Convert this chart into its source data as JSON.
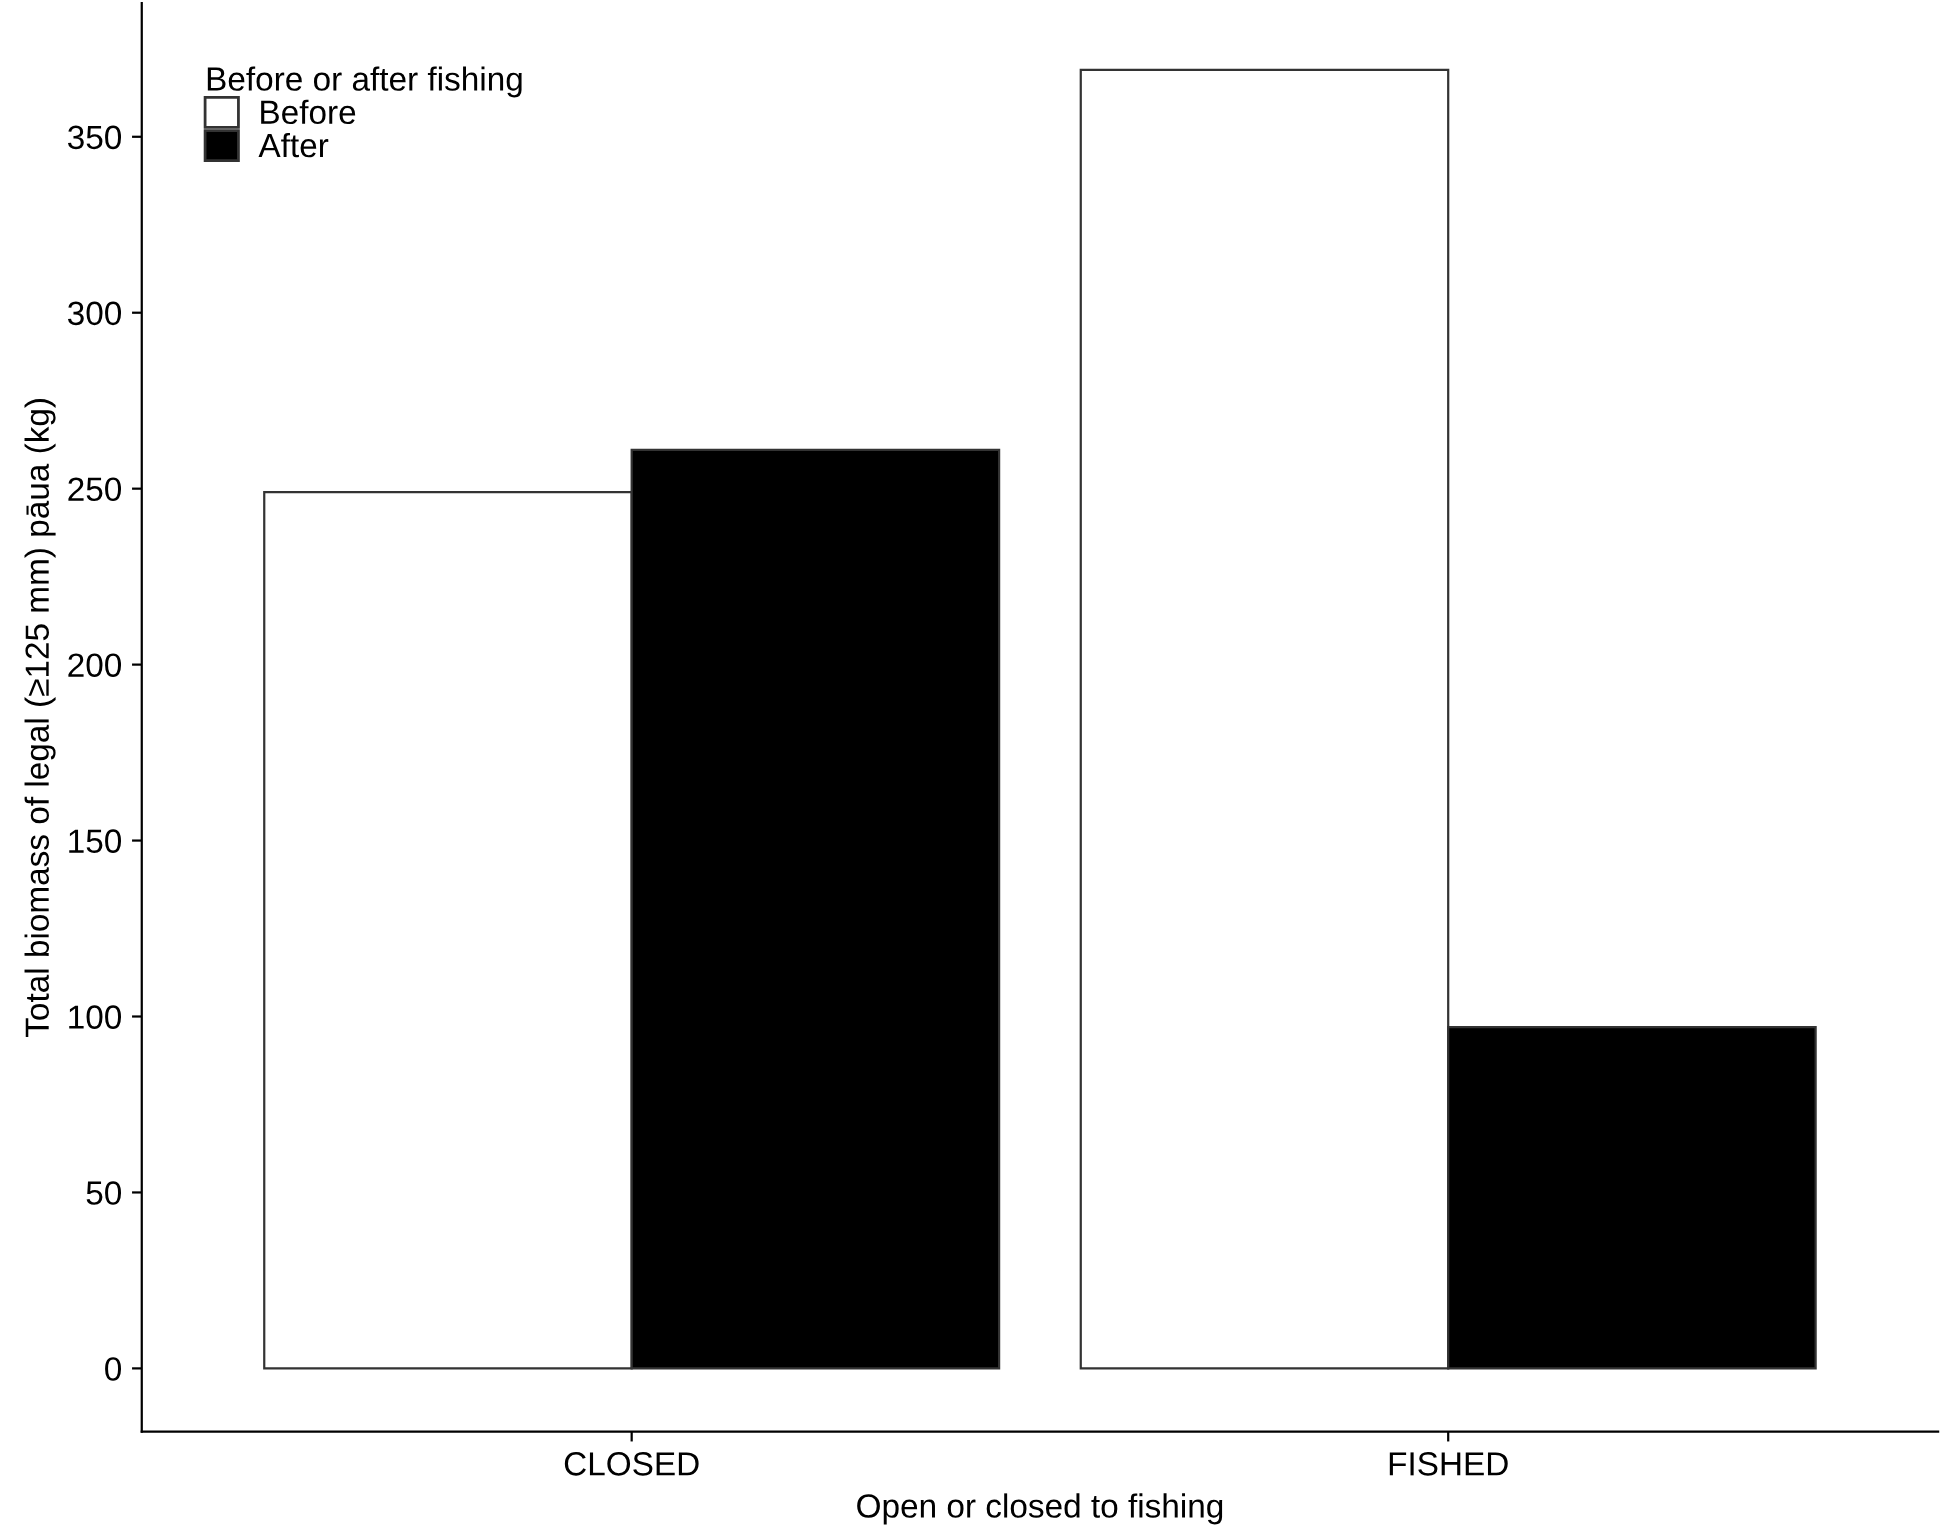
{
  "chart_data": {
    "type": "bar",
    "xlabel": "Open or closed to fishing",
    "ylabel": "Total biomass of legal (≥125 mm) pāua (kg)",
    "legend_title": "Before or after fishing",
    "categories": [
      "CLOSED",
      "FISHED"
    ],
    "series": [
      {
        "name": "Before",
        "color": "#ffffff",
        "values": [
          249,
          369
        ]
      },
      {
        "name": "After",
        "color": "#000000",
        "values": [
          261,
          97
        ]
      }
    ],
    "ylim": [
      -18,
      388
    ],
    "yticks": [
      0,
      50,
      100,
      150,
      200,
      250,
      300,
      350
    ],
    "grid": false,
    "legend": "top left"
  }
}
